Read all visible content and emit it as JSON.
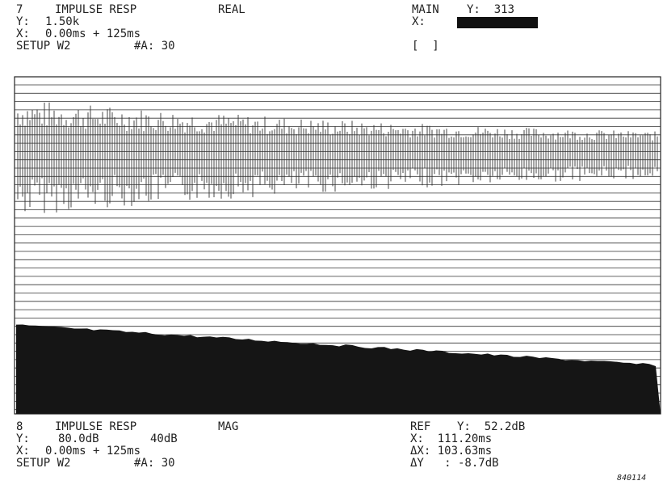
{
  "top": {
    "trace": "7",
    "title": "IMPULSE RESP",
    "mode": "REAL",
    "y_label": "Y:",
    "y_value": "1.50k",
    "x_label": "X:",
    "x_value": "0.00ms + 125ms",
    "setup": "SETUP W2",
    "averages": "#A: 30",
    "marker": "MAIN",
    "marker_y": "Y:  313",
    "marker_x_label": "X:",
    "bracket": "[  ]"
  },
  "bottom": {
    "trace": "8",
    "title": "IMPULSE RESP",
    "mode": "MAG",
    "y_label": "Y:",
    "y_value": "80.0dB",
    "y_scale": "40dB",
    "x_label": "X:",
    "x_value": "0.00ms + 125ms",
    "setup": "SETUP W2",
    "averages": "#A: 30",
    "marker": "REF",
    "marker_y": "Y:  52.2dB",
    "marker_x": "X:  111.20ms",
    "marker_dx": "ΔX: 103.63ms",
    "marker_dy": "ΔY   : -8.7dB"
  },
  "figure_id": "840114"
}
